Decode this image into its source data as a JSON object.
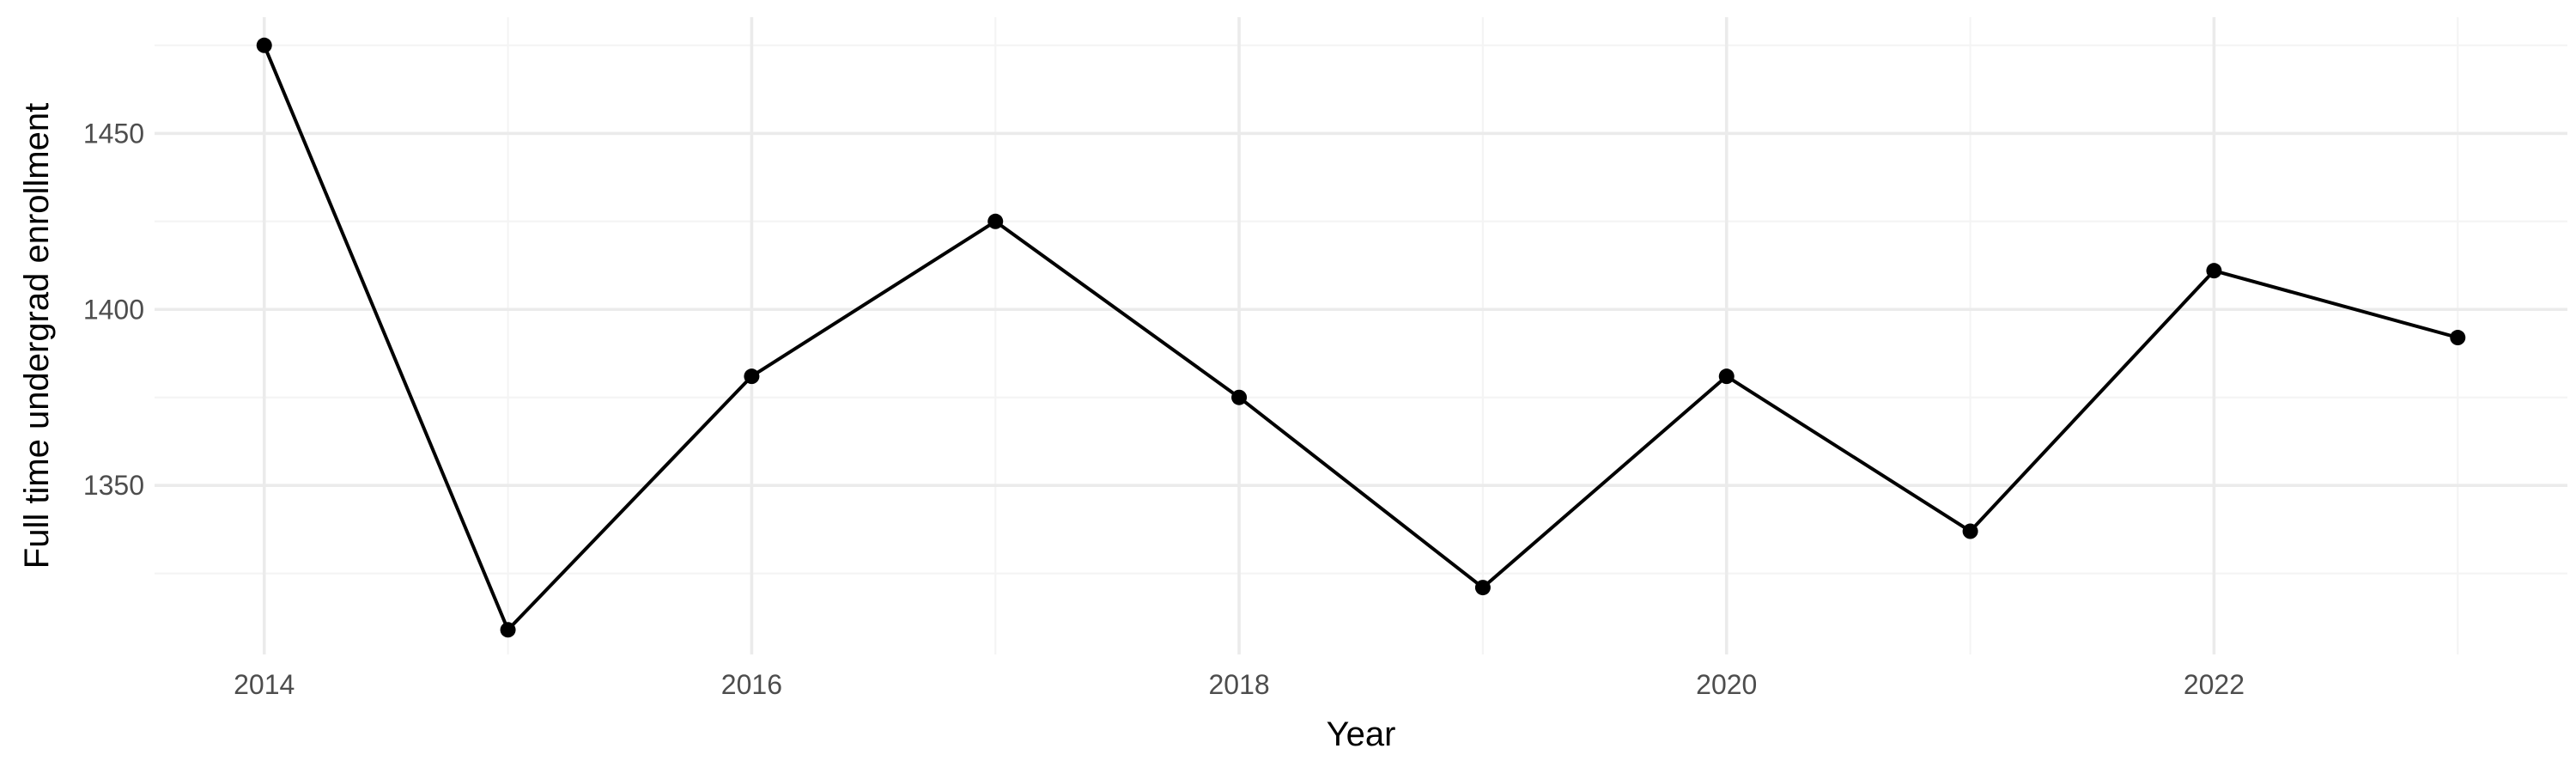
{
  "chart_data": {
    "type": "line",
    "title": "",
    "xlabel": "Year",
    "ylabel": "Full time undergrad enrollment",
    "x": [
      2014,
      2015,
      2016,
      2017,
      2018,
      2019,
      2020,
      2021,
      2022,
      2023
    ],
    "series": [
      {
        "values": [
          1475,
          1309,
          1381,
          1425,
          1375,
          1321,
          1381,
          1337,
          1411,
          1392
        ]
      }
    ],
    "xlim": [
      2013.55,
      2023.45
    ],
    "ylim": [
      1302,
      1483
    ],
    "x_ticks": [
      2014,
      2016,
      2018,
      2020,
      2022
    ],
    "x_tick_labels": [
      "2014",
      "2016",
      "2018",
      "2020",
      "2022"
    ],
    "x_minor_ticks": [
      2015,
      2017,
      2019,
      2021,
      2023
    ],
    "y_ticks": [
      1350,
      1400,
      1450
    ],
    "y_tick_labels": [
      "1350",
      "1400",
      "1450"
    ],
    "y_minor_ticks": [
      1325,
      1375,
      1425,
      1475
    ],
    "grid": true,
    "legend": "none",
    "line_color": "#000000",
    "grid_color": "#ebebeb"
  }
}
